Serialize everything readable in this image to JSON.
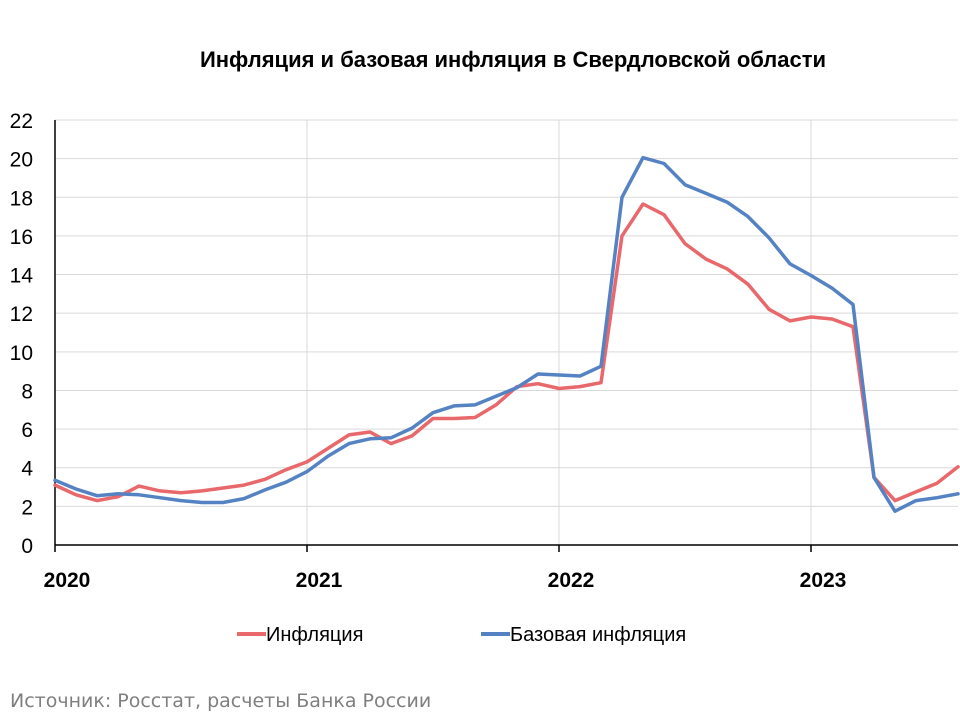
{
  "chart_data": {
    "type": "line",
    "title": "Инфляция и базовая инфляция в Свердловской области",
    "ylim": [
      0,
      22
    ],
    "yticks": [
      "0",
      "2",
      "4",
      "6",
      "8",
      "10",
      "12",
      "14",
      "16",
      "18",
      "20",
      "22"
    ],
    "xticks": [
      {
        "label": "2020",
        "x": 0
      },
      {
        "label": "2021",
        "x": 12
      },
      {
        "label": "2022",
        "x": 24
      },
      {
        "label": "2023",
        "x": 36
      }
    ],
    "xlim": [
      0,
      43
    ],
    "grid": true,
    "legend_position": "bottom",
    "series": [
      {
        "name": "Инфляция",
        "color": "#E8686B",
        "values": [
          3.1,
          2.6,
          2.3,
          2.5,
          3.05,
          2.8,
          2.7,
          2.8,
          2.95,
          3.1,
          3.4,
          3.9,
          4.3,
          5.0,
          5.7,
          5.85,
          5.25,
          5.65,
          6.55,
          6.55,
          6.6,
          7.25,
          8.2,
          8.35,
          8.1,
          8.2,
          8.4,
          16.0,
          17.65,
          17.1,
          15.6,
          14.8,
          14.3,
          13.5,
          12.2,
          11.6,
          11.8,
          11.7,
          11.3,
          3.5,
          2.3,
          2.75,
          3.2,
          4.05
        ]
      },
      {
        "name": "Базовая инфляция",
        "color": "#5582C3",
        "values": [
          3.35,
          2.9,
          2.55,
          2.65,
          2.6,
          2.45,
          2.3,
          2.2,
          2.2,
          2.4,
          2.85,
          3.25,
          3.8,
          4.6,
          5.25,
          5.5,
          5.55,
          6.05,
          6.85,
          7.2,
          7.25,
          7.7,
          8.15,
          8.85,
          8.8,
          8.75,
          9.25,
          18.0,
          20.05,
          19.75,
          18.65,
          18.2,
          17.75,
          17.0,
          15.9,
          14.55,
          13.95,
          13.3,
          12.45,
          3.5,
          1.75,
          2.3,
          2.45,
          2.65
        ]
      }
    ]
  },
  "source_text": "Источник: Росстат, расчеты Банка России"
}
